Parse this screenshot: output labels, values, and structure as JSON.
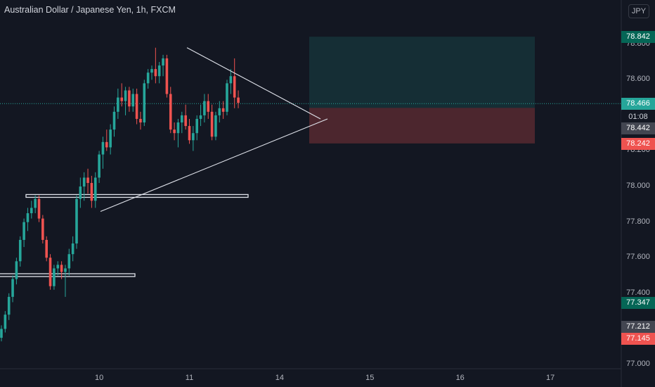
{
  "header": {
    "title": "Australian Dollar / Japanese Yen, 1h, FXCM",
    "currency": "JPY"
  },
  "colors": {
    "background": "#131722",
    "up": "#26a69a",
    "down": "#ef5350",
    "line": "#ffffff"
  },
  "price_tags": [
    {
      "value": "78.842",
      "kind": "target"
    },
    {
      "value": "78.466",
      "kind": "last"
    },
    {
      "value": "01:08",
      "kind": "countdown"
    },
    {
      "value": "78.442",
      "kind": "entry"
    },
    {
      "value": "78.242",
      "kind": "stop"
    },
    {
      "value": "77.347",
      "kind": "green"
    },
    {
      "value": "77.212",
      "kind": "grey"
    },
    {
      "value": "77.145",
      "kind": "red"
    }
  ],
  "chart_data": {
    "type": "candlestick",
    "ylim": [
      77.0,
      78.95
    ],
    "y_ticks": [
      "78.800",
      "78.600",
      "78.200",
      "78.000",
      "77.800",
      "77.600",
      "77.400",
      "77.000"
    ],
    "x_ticks": [
      {
        "label": "10",
        "x": 26
      },
      {
        "label": "11",
        "x": 50
      },
      {
        "label": "14",
        "x": 74
      },
      {
        "label": "15",
        "x": 98
      },
      {
        "label": "16",
        "x": 122
      },
      {
        "label": "17",
        "x": 146
      }
    ],
    "candles": [
      [
        77.15,
        77.22,
        77.13,
        77.2
      ],
      [
        77.2,
        77.3,
        77.18,
        77.28
      ],
      [
        77.28,
        77.4,
        77.25,
        77.38
      ],
      [
        77.38,
        77.5,
        77.35,
        77.48
      ],
      [
        77.48,
        77.6,
        77.45,
        77.58
      ],
      [
        77.58,
        77.72,
        77.55,
        77.7
      ],
      [
        77.7,
        77.82,
        77.66,
        77.8
      ],
      [
        77.8,
        77.88,
        77.75,
        77.85
      ],
      [
        77.85,
        77.92,
        77.82,
        77.88
      ],
      [
        77.88,
        77.95,
        77.85,
        77.93
      ],
      [
        77.93,
        77.95,
        77.8,
        77.82
      ],
      [
        77.82,
        77.84,
        77.68,
        77.7
      ],
      [
        77.7,
        77.72,
        77.58,
        77.6
      ],
      [
        77.6,
        77.62,
        77.42,
        77.44
      ],
      [
        77.44,
        77.56,
        77.42,
        77.54
      ],
      [
        77.54,
        77.58,
        77.5,
        77.56
      ],
      [
        77.56,
        77.58,
        77.48,
        77.52
      ],
      [
        77.52,
        77.56,
        77.38,
        77.54
      ],
      [
        77.54,
        77.65,
        77.5,
        77.62
      ],
      [
        77.62,
        77.72,
        77.58,
        77.68
      ],
      [
        77.68,
        77.95,
        77.65,
        77.93
      ],
      [
        77.93,
        78.05,
        77.88,
        78.0
      ],
      [
        78.0,
        78.08,
        77.92,
        78.05
      ],
      [
        78.05,
        78.1,
        77.96,
        78.02
      ],
      [
        78.02,
        78.06,
        77.88,
        77.92
      ],
      [
        77.92,
        78.08,
        77.88,
        78.05
      ],
      [
        78.05,
        78.2,
        78.02,
        78.18
      ],
      [
        78.18,
        78.28,
        78.1,
        78.25
      ],
      [
        78.25,
        78.32,
        78.2,
        78.22
      ],
      [
        78.22,
        78.35,
        78.18,
        78.32
      ],
      [
        78.32,
        78.45,
        78.28,
        78.42
      ],
      [
        78.42,
        78.55,
        78.38,
        78.5
      ],
      [
        78.5,
        78.58,
        78.45,
        78.48
      ],
      [
        78.48,
        78.56,
        78.4,
        78.54
      ],
      [
        78.54,
        78.56,
        78.42,
        78.45
      ],
      [
        78.45,
        78.55,
        78.42,
        78.52
      ],
      [
        78.52,
        78.55,
        78.35,
        78.38
      ],
      [
        78.38,
        78.42,
        78.32,
        78.36
      ],
      [
        78.36,
        78.6,
        78.34,
        78.58
      ],
      [
        78.58,
        78.66,
        78.55,
        78.64
      ],
      [
        78.64,
        78.68,
        78.6,
        78.66
      ],
      [
        78.66,
        78.78,
        78.58,
        78.62
      ],
      [
        78.62,
        78.7,
        78.58,
        78.68
      ],
      [
        78.68,
        78.74,
        78.62,
        78.72
      ],
      [
        78.72,
        78.74,
        78.5,
        78.52
      ],
      [
        78.52,
        78.56,
        78.3,
        78.32
      ],
      [
        78.32,
        78.36,
        78.26,
        78.3
      ],
      [
        78.3,
        78.38,
        78.22,
        78.36
      ],
      [
        78.36,
        78.42,
        78.3,
        78.4
      ],
      [
        78.4,
        78.46,
        78.32,
        78.34
      ],
      [
        78.34,
        78.38,
        78.24,
        78.26
      ],
      [
        78.26,
        78.34,
        78.2,
        78.3
      ],
      [
        78.3,
        78.4,
        78.26,
        78.38
      ],
      [
        78.38,
        78.46,
        78.34,
        78.4
      ],
      [
        78.4,
        78.52,
        78.36,
        78.48
      ],
      [
        78.48,
        78.52,
        78.38,
        78.42
      ],
      [
        78.42,
        78.46,
        78.26,
        78.28
      ],
      [
        78.28,
        78.42,
        78.26,
        78.4
      ],
      [
        78.4,
        78.48,
        78.36,
        78.44
      ],
      [
        78.44,
        78.48,
        78.38,
        78.42
      ],
      [
        78.42,
        78.6,
        78.4,
        78.58
      ],
      [
        78.58,
        78.66,
        78.52,
        78.62
      ],
      [
        78.62,
        78.72,
        78.44,
        78.5
      ],
      [
        78.5,
        78.54,
        78.44,
        78.47
      ]
    ]
  }
}
